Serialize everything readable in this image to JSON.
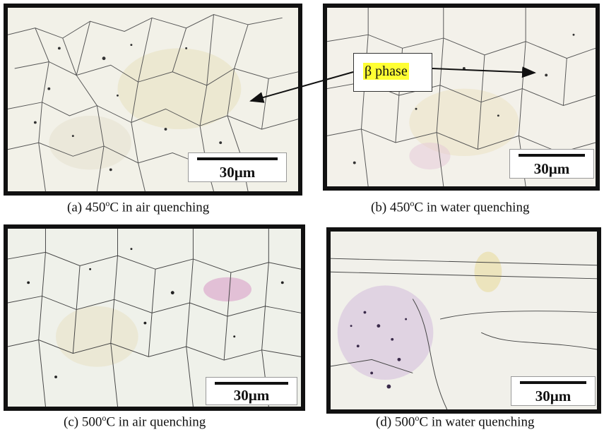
{
  "callout": {
    "text": "β phase"
  },
  "panels": [
    {
      "id": "a",
      "scale_label": "30µm",
      "caption_prefix": "(a) 450",
      "caption_sup": "o",
      "caption_rest": "C in air quenching"
    },
    {
      "id": "b",
      "scale_label": "30µm",
      "caption_prefix": "(b) 450",
      "caption_sup": "o",
      "caption_rest": "C in water quenching"
    },
    {
      "id": "c",
      "scale_label": "30µm",
      "caption_prefix": "(c) 500",
      "caption_sup": "o",
      "caption_rest": "C in air quenching"
    },
    {
      "id": "d",
      "scale_label": "30µm",
      "caption_prefix": "(d) 500",
      "caption_sup": "o",
      "caption_rest": "C in water quenching"
    }
  ],
  "colors": {
    "border": "#111111",
    "highlight": "#ffff33",
    "stain_pink": "#d9a0c8",
    "stain_yellow": "#e8d890"
  }
}
